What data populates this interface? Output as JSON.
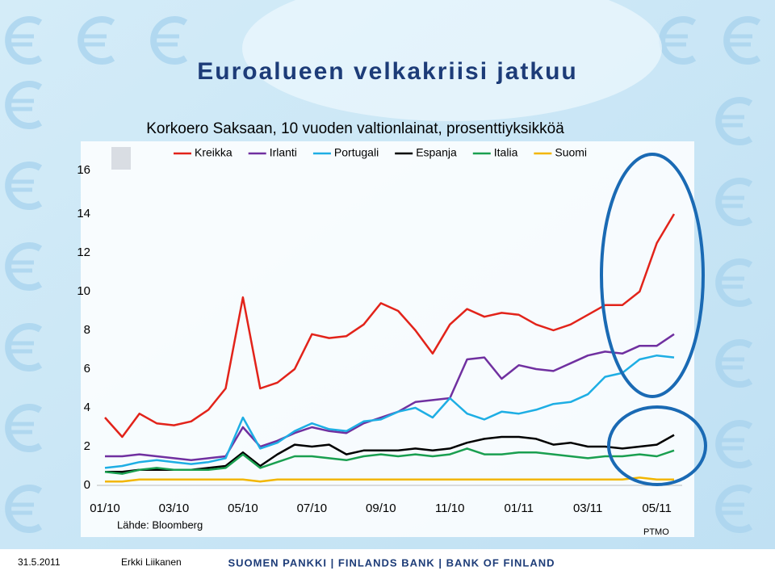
{
  "slide": {
    "title": "Euroalueen velkakriisi jatkuu"
  },
  "footer": {
    "date": "31.5.2011",
    "author": "Erkki Liikanen",
    "org": "SUOMEN PANKKI | FINLANDS BANK | BANK OF FINLAND"
  },
  "chart_data": {
    "type": "line",
    "title": "Korkoero Saksaan, 10 vuoden valtionlainat, prosenttiyksikköä",
    "source": "Lähde: Bloomberg",
    "note": "PTMO",
    "legend": "top",
    "categories": [
      "01/10",
      null,
      null,
      null,
      "03/10",
      null,
      null,
      null,
      "05/10",
      null,
      null,
      null,
      "07/10",
      null,
      null,
      null,
      "09/10",
      null,
      null,
      null,
      "11/10",
      null,
      null,
      null,
      "01/11",
      null,
      null,
      null,
      "03/11",
      null,
      null,
      null,
      "05/11",
      null
    ],
    "ylim": [
      0,
      16
    ],
    "yticks": [
      0,
      2,
      4,
      6,
      8,
      10,
      12,
      14,
      16
    ],
    "grid": false,
    "series": [
      {
        "name": "Kreikka",
        "color": "#e2231a",
        "values": [
          3.5,
          2.5,
          3.7,
          3.2,
          3.1,
          3.3,
          3.9,
          5.0,
          9.7,
          5.0,
          5.3,
          6.0,
          7.8,
          7.6,
          7.7,
          8.3,
          9.4,
          9.0,
          8.0,
          6.8,
          8.3,
          9.1,
          8.7,
          8.9,
          8.8,
          8.3,
          8.0,
          8.3,
          8.8,
          9.3,
          9.3,
          10.0,
          12.5,
          14.0
        ]
      },
      {
        "name": "Irlanti",
        "color": "#7030a0",
        "values": [
          1.5,
          1.5,
          1.6,
          1.5,
          1.4,
          1.3,
          1.4,
          1.5,
          3.0,
          2.0,
          2.3,
          2.7,
          3.0,
          2.8,
          2.7,
          3.2,
          3.5,
          3.8,
          4.3,
          4.4,
          4.5,
          6.5,
          6.6,
          5.5,
          6.2,
          6.0,
          5.9,
          6.3,
          6.7,
          6.9,
          6.8,
          7.2,
          7.2,
          7.8
        ]
      },
      {
        "name": "Portugali",
        "color": "#1eaee4",
        "values": [
          0.9,
          1.0,
          1.2,
          1.3,
          1.2,
          1.1,
          1.2,
          1.4,
          3.5,
          1.9,
          2.2,
          2.8,
          3.2,
          2.9,
          2.8,
          3.3,
          3.4,
          3.8,
          4.0,
          3.5,
          4.5,
          3.7,
          3.4,
          3.8,
          3.7,
          3.9,
          4.2,
          4.3,
          4.7,
          5.6,
          5.8,
          6.5,
          6.7,
          6.6
        ]
      },
      {
        "name": "Espanja",
        "color": "#000000",
        "values": [
          0.7,
          0.7,
          0.8,
          0.8,
          0.8,
          0.8,
          0.9,
          1.0,
          1.7,
          1.0,
          1.6,
          2.1,
          2.0,
          2.1,
          1.6,
          1.8,
          1.8,
          1.8,
          1.9,
          1.8,
          1.9,
          2.2,
          2.4,
          2.5,
          2.5,
          2.4,
          2.1,
          2.2,
          2.0,
          2.0,
          1.9,
          2.0,
          2.1,
          2.6
        ]
      },
      {
        "name": "Italia",
        "color": "#1a9f50",
        "values": [
          0.7,
          0.6,
          0.8,
          0.9,
          0.8,
          0.8,
          0.8,
          0.9,
          1.6,
          0.9,
          1.2,
          1.5,
          1.5,
          1.4,
          1.3,
          1.5,
          1.6,
          1.5,
          1.6,
          1.5,
          1.6,
          1.9,
          1.6,
          1.6,
          1.7,
          1.7,
          1.6,
          1.5,
          1.4,
          1.5,
          1.5,
          1.6,
          1.5,
          1.8
        ]
      },
      {
        "name": "Suomi",
        "color": "#f2b600",
        "values": [
          0.2,
          0.2,
          0.3,
          0.3,
          0.3,
          0.3,
          0.3,
          0.3,
          0.3,
          0.2,
          0.3,
          0.3,
          0.3,
          0.3,
          0.3,
          0.3,
          0.3,
          0.3,
          0.3,
          0.3,
          0.3,
          0.3,
          0.3,
          0.3,
          0.3,
          0.3,
          0.3,
          0.3,
          0.3,
          0.3,
          0.3,
          0.4,
          0.3,
          0.3
        ]
      }
    ]
  }
}
